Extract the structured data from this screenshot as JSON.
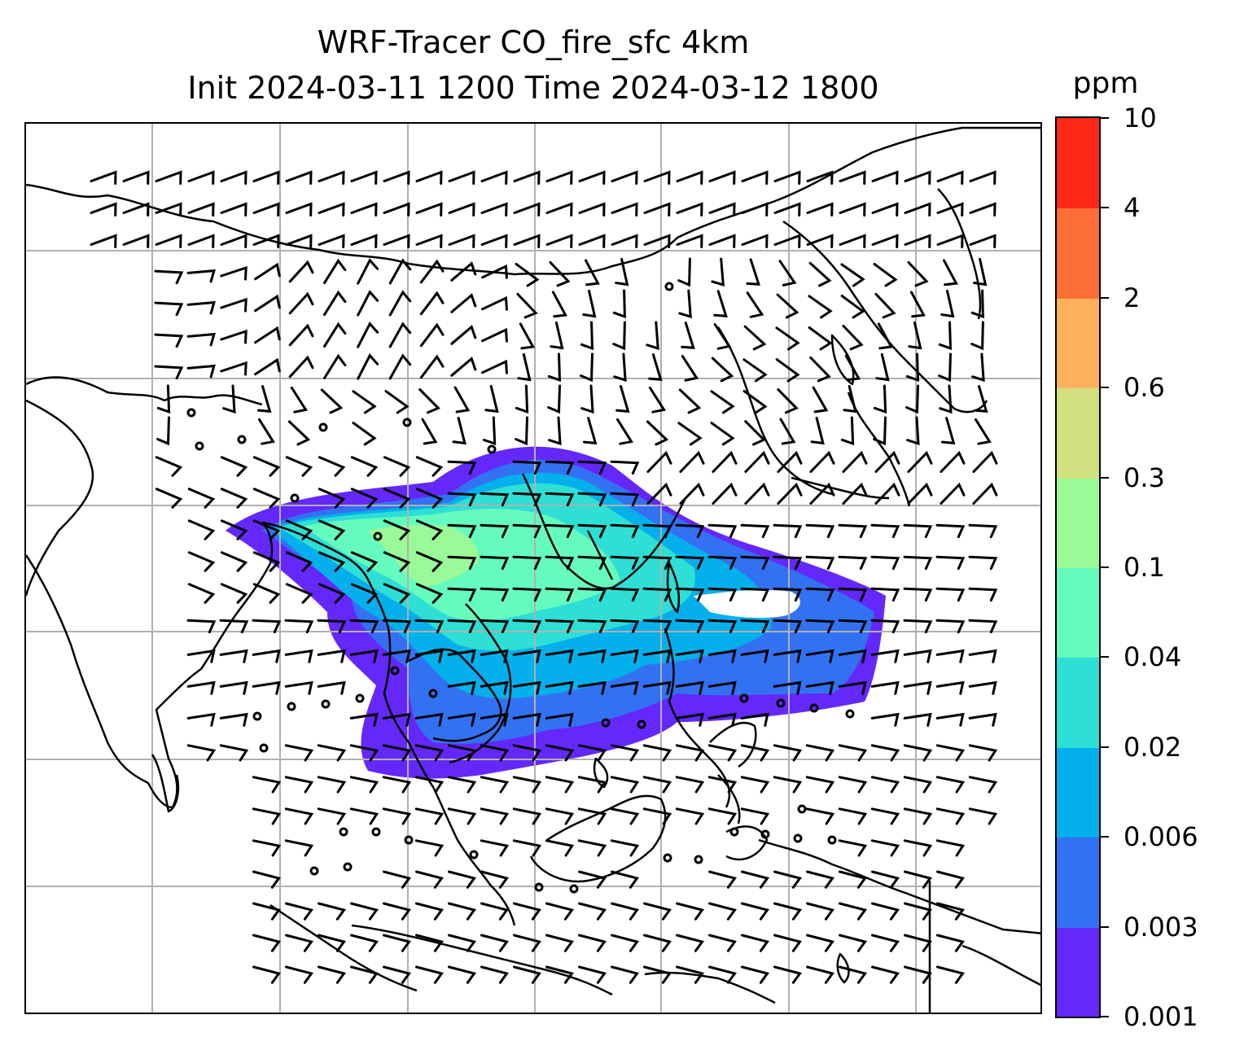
{
  "title": {
    "line1": "WRF-Tracer CO_fire_sfc 4km",
    "line2": "Init 2024-03-11 1200 Time 2024-03-12 1800"
  },
  "colorbar": {
    "unit": "ppm",
    "levels": [
      "0.001",
      "0.003",
      "0.006",
      "0.02",
      "0.04",
      "0.1",
      "0.3",
      "0.6",
      "2",
      "4",
      "10"
    ],
    "colors": [
      "#6428fa",
      "#3272f2",
      "#04b0eb",
      "#2ddfd4",
      "#66fbbe",
      "#9bfa98",
      "#d1e17f",
      "#feb05d",
      "#fe6e37",
      "#fe2817"
    ]
  },
  "map": {
    "gridline_color": "#b0b0b0",
    "coastline_color": "#000000",
    "wind_barb_color": "#000000",
    "plume_levels_shown": [
      "0.001",
      "0.003",
      "0.006",
      "0.02",
      "0.04",
      "0.1"
    ]
  }
}
